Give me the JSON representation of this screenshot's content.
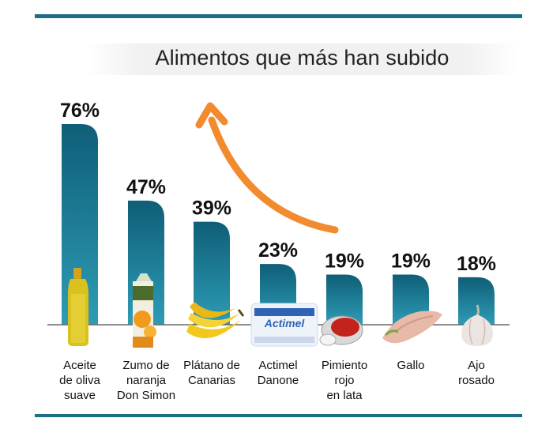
{
  "title": "Alimentos que más han subido",
  "colors": {
    "bar_top": "#0f5e77",
    "bar_bottom": "#2e9cb6",
    "rule": "#1b6f86",
    "arrow": "#f28a2e",
    "baseline": "#6b6b6b"
  },
  "chart_data": {
    "type": "bar",
    "title": "Alimentos que más han subido",
    "categories": [
      [
        "Aceite",
        "de oliva",
        "suave"
      ],
      [
        "Zumo de",
        "naranja",
        "Don Simon"
      ],
      [
        "Plátano de",
        "Canarias"
      ],
      [
        "Actimel",
        "Danone"
      ],
      [
        "Pimiento",
        "rojo",
        "en lata"
      ],
      [
        "Gallo"
      ],
      [
        "Ajo",
        "rosado"
      ]
    ],
    "values": [
      76,
      47,
      39,
      23,
      19,
      19,
      18
    ],
    "value_labels": [
      "76%",
      "47%",
      "39%",
      "23%",
      "19%",
      "19%",
      "18%"
    ],
    "unit": "%",
    "grid": false,
    "legend": "none",
    "icons": [
      "olive-oil-bottle",
      "orange-juice-carton",
      "banana-bunch",
      "actimel-yogurt-pack",
      "canned-red-pepper",
      "fish-fillet",
      "garlic-bulb"
    ]
  }
}
